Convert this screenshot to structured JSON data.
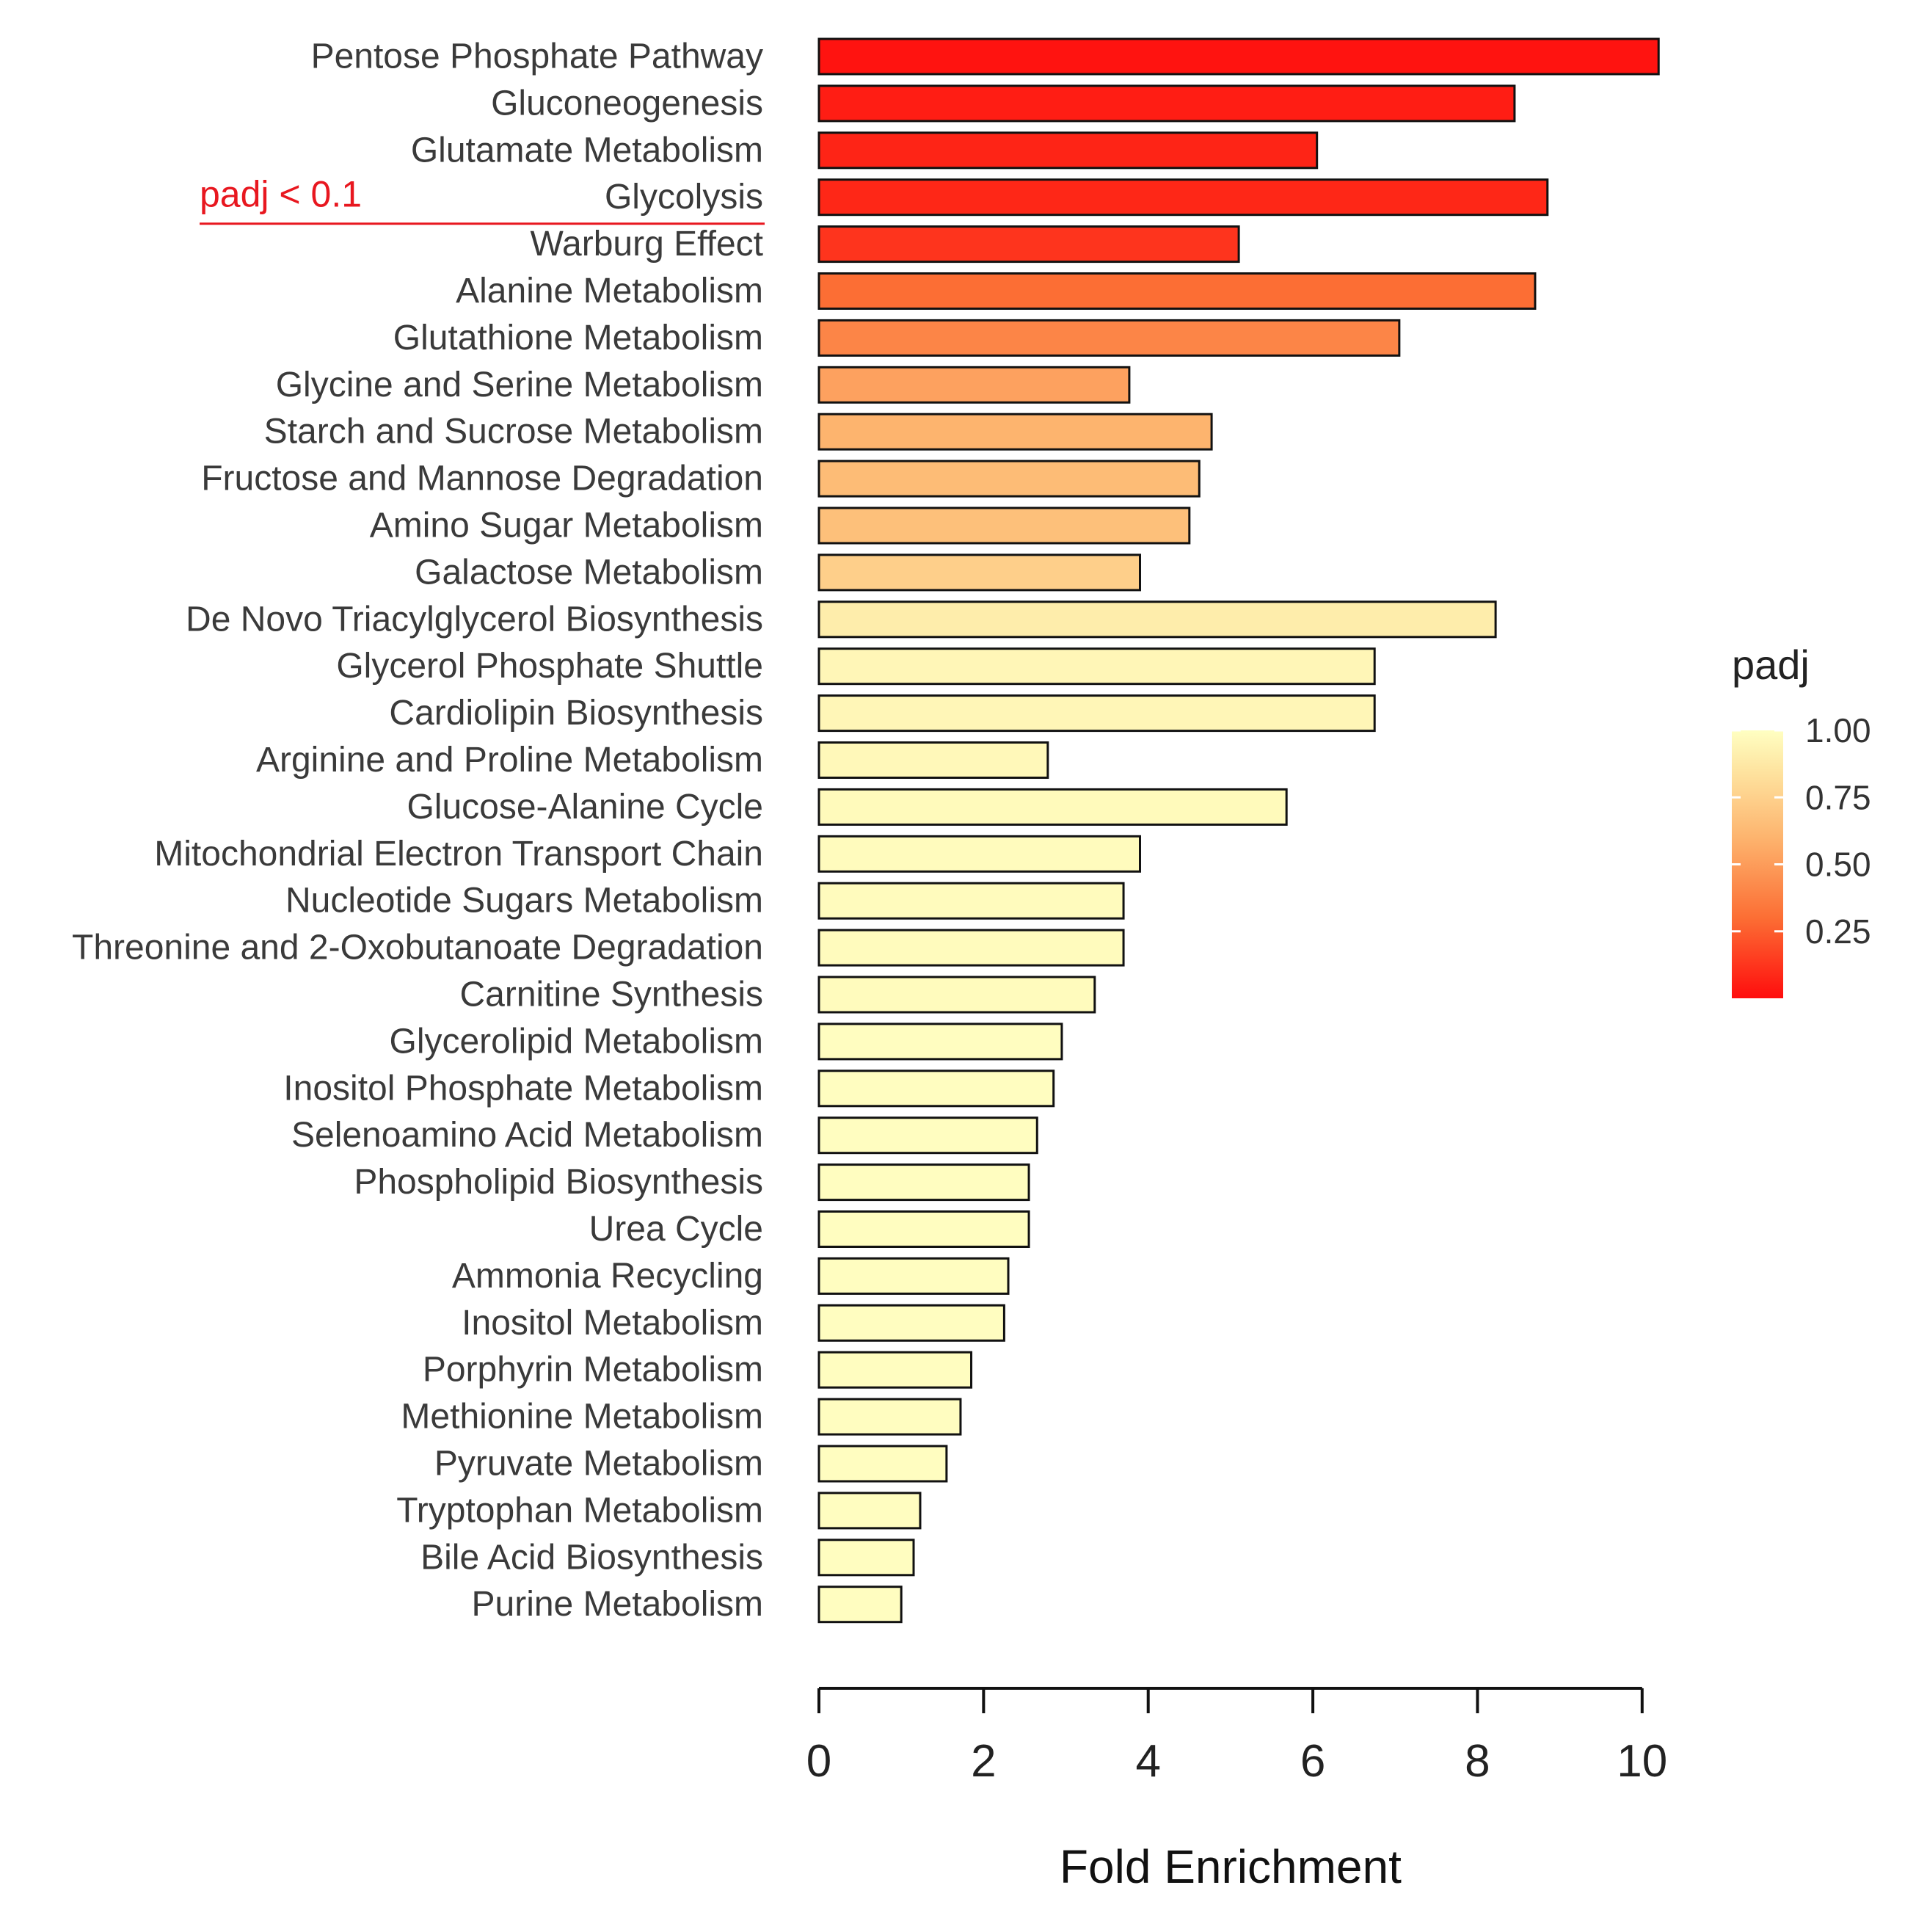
{
  "chart_data": {
    "type": "bar",
    "orientation": "horizontal",
    "xlabel": "Fold Enrichment",
    "xlim": [
      0,
      10.1
    ],
    "xticks": [
      0,
      2,
      4,
      6,
      8,
      10
    ],
    "legend": {
      "title": "padj",
      "position": "right",
      "ticks": [
        "1.00",
        "0.75",
        "0.50",
        "0.25"
      ],
      "range": [
        0,
        1
      ],
      "low_color": "#ff0d0d",
      "high_color": "#ffffc2"
    },
    "annotation": {
      "text": "padj < 0.1",
      "color": "#e8171f",
      "below_category": "Glycolysis"
    },
    "categories": [
      "Pentose Phosphate Pathway",
      "Gluconeogenesis",
      "Glutamate Metabolism",
      "Glycolysis",
      "Warburg Effect",
      "Alanine Metabolism",
      "Glutathione Metabolism",
      "Glycine and Serine Metabolism",
      "Starch and Sucrose Metabolism",
      "Fructose and Mannose Degradation",
      "Amino Sugar Metabolism",
      "Galactose Metabolism",
      "De Novo Triacylglycerol Biosynthesis",
      "Glycerol Phosphate Shuttle",
      "Cardiolipin Biosynthesis",
      "Arginine and Proline Metabolism",
      "Glucose-Alanine Cycle",
      "Mitochondrial Electron Transport Chain",
      "Nucleotide Sugars Metabolism",
      "Threonine and 2-Oxobutanoate Degradation",
      "Carnitine Synthesis",
      "Glycerolipid Metabolism",
      "Inositol Phosphate Metabolism",
      "Selenoamino Acid Metabolism",
      "Phospholipid Biosynthesis",
      "Urea Cycle",
      "Ammonia Recycling",
      "Inositol Metabolism",
      "Porphyrin Metabolism",
      "Methionine Metabolism",
      "Pyruvate Metabolism",
      "Tryptophan Metabolism",
      "Bile Acid Biosynthesis",
      "Purine Metabolism"
    ],
    "values": [
      10.2,
      8.45,
      6.05,
      8.85,
      5.1,
      8.7,
      7.05,
      3.77,
      4.77,
      4.62,
      4.5,
      3.9,
      8.22,
      6.75,
      6.75,
      2.78,
      5.68,
      3.9,
      3.7,
      3.7,
      3.35,
      2.95,
      2.85,
      2.65,
      2.55,
      2.55,
      2.3,
      2.25,
      1.85,
      1.72,
      1.55,
      1.23,
      1.15,
      1.0
    ],
    "padj": [
      0.02,
      0.05,
      0.07,
      0.08,
      0.12,
      0.3,
      0.4,
      0.52,
      0.6,
      0.64,
      0.66,
      0.74,
      0.9,
      0.95,
      0.95,
      0.96,
      0.97,
      0.98,
      0.98,
      0.98,
      0.98,
      0.99,
      0.99,
      0.99,
      0.99,
      0.99,
      0.99,
      0.99,
      0.99,
      0.99,
      0.99,
      0.99,
      0.99,
      0.99
    ]
  }
}
